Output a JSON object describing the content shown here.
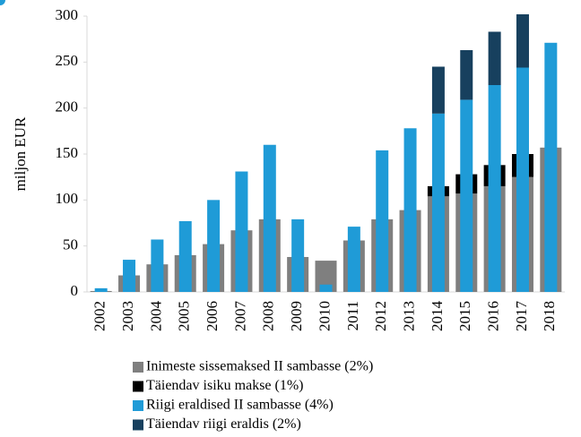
{
  "chart_data": {
    "type": "bar",
    "y_label": "miljon EUR",
    "categories": [
      "2002",
      "2003",
      "2004",
      "2005",
      "2006",
      "2007",
      "2008",
      "2009",
      "2010",
      "2011",
      "2012",
      "2013",
      "2014",
      "2015",
      "2016",
      "2017",
      "2018"
    ],
    "series": [
      {
        "name": "Inimeste sissemaksed II sambasse (2%)",
        "color": "#7f7f7f",
        "values": [
          1,
          18,
          30,
          40,
          52,
          67,
          79,
          38,
          34,
          56,
          79,
          89,
          104,
          107,
          115,
          125,
          157
        ]
      },
      {
        "name": "Täiendav isiku makse (1%)",
        "color": "#000000",
        "values": [
          null,
          null,
          null,
          null,
          null,
          null,
          null,
          null,
          null,
          null,
          null,
          null,
          11,
          21,
          23,
          25,
          null
        ]
      },
      {
        "name": "Riigi eraldised II sambasse (4%)",
        "color": "#1f9bd7",
        "values": [
          4,
          35,
          57,
          77,
          100,
          131,
          160,
          79,
          8,
          71,
          154,
          178,
          194,
          209,
          225,
          244,
          271
        ]
      },
      {
        "name": "Täiendav riigi eraldis (2%)",
        "color": "#17405e",
        "values": [
          null,
          null,
          null,
          null,
          null,
          null,
          null,
          null,
          null,
          null,
          null,
          null,
          51,
          54,
          58,
          58,
          null
        ]
      }
    ],
    "ylim": [
      0,
      300
    ],
    "yticks": [
      0,
      50,
      100,
      150,
      200,
      250,
      300
    ]
  }
}
